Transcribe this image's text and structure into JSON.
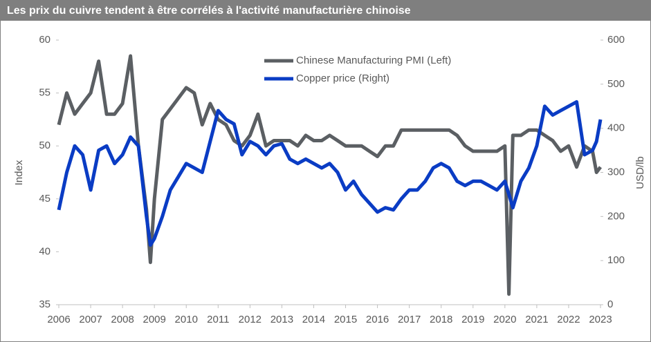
{
  "chart_data": {
    "type": "line",
    "title": "Les prix du cuivre tendent à être corrélés à l'activité manufacturière chinoise",
    "y_label": "Index",
    "y2_label": "USD/lb",
    "x": [
      2006,
      2006.25,
      2006.5,
      2006.75,
      2007,
      2007.25,
      2007.5,
      2007.75,
      2008,
      2008.25,
      2008.5,
      2008.75,
      2008.875,
      2009,
      2009.25,
      2009.5,
      2009.75,
      2010,
      2010.25,
      2010.5,
      2010.75,
      2011,
      2011.25,
      2011.5,
      2011.75,
      2012,
      2012.25,
      2012.5,
      2012.75,
      2013,
      2013.25,
      2013.5,
      2013.75,
      2014,
      2014.25,
      2014.5,
      2014.75,
      2015,
      2015.25,
      2015.5,
      2015.75,
      2016,
      2016.25,
      2016.5,
      2016.75,
      2017,
      2017.25,
      2017.5,
      2017.75,
      2018,
      2018.25,
      2018.5,
      2018.75,
      2019,
      2019.25,
      2019.5,
      2019.75,
      2020,
      2020.125,
      2020.25,
      2020.5,
      2020.75,
      2021,
      2021.25,
      2021.5,
      2021.75,
      2022,
      2022.25,
      2022.5,
      2022.75,
      2022.875,
      2023
    ],
    "series": [
      {
        "name": "Chinese Manufacturing PMI (Left)",
        "color": "#5b5f63",
        "axis": "y",
        "values": [
          52,
          55,
          53,
          54,
          55,
          58,
          53,
          53,
          54,
          58.5,
          50,
          44,
          39,
          45,
          52.5,
          53.5,
          54.5,
          55.5,
          55,
          52,
          54,
          52.5,
          52,
          50.5,
          50,
          51,
          53,
          50,
          50.5,
          50.5,
          50.5,
          50,
          51,
          50.5,
          50.5,
          51,
          50.5,
          50,
          50,
          50,
          49.5,
          49,
          50,
          50,
          51.5,
          51.5,
          51.5,
          51.5,
          51.5,
          51.5,
          51.5,
          51,
          50,
          49.5,
          49.5,
          49.5,
          49.5,
          50,
          36,
          51,
          51,
          51.5,
          51.5,
          51,
          50.5,
          49.5,
          50,
          48,
          50,
          49.5,
          47.5,
          48
        ]
      },
      {
        "name": "Copper price (Right)",
        "color": "#0a3cc4",
        "axis": "y2",
        "values": [
          215,
          300,
          360,
          340,
          260,
          350,
          360,
          320,
          340,
          380,
          360,
          200,
          135,
          150,
          200,
          260,
          290,
          320,
          310,
          300,
          370,
          440,
          420,
          410,
          340,
          370,
          360,
          340,
          360,
          365,
          330,
          320,
          330,
          320,
          310,
          320,
          300,
          260,
          280,
          250,
          230,
          210,
          220,
          215,
          240,
          260,
          260,
          280,
          310,
          320,
          310,
          280,
          270,
          280,
          280,
          270,
          260,
          280,
          250,
          220,
          280,
          310,
          360,
          450,
          430,
          440,
          450,
          460,
          340,
          350,
          370,
          420
        ]
      }
    ],
    "xlim": [
      2006,
      2023
    ],
    "xticks": [
      2006,
      2007,
      2008,
      2009,
      2010,
      2011,
      2012,
      2013,
      2014,
      2015,
      2016,
      2017,
      2018,
      2019,
      2020,
      2021,
      2022,
      2023
    ],
    "ylim": [
      35,
      60
    ],
    "yticks": [
      35,
      40,
      45,
      50,
      55,
      60
    ],
    "y2lim": [
      0,
      600
    ],
    "y2ticks": [
      0,
      100,
      200,
      300,
      400,
      500,
      600
    ],
    "grid": false
  }
}
